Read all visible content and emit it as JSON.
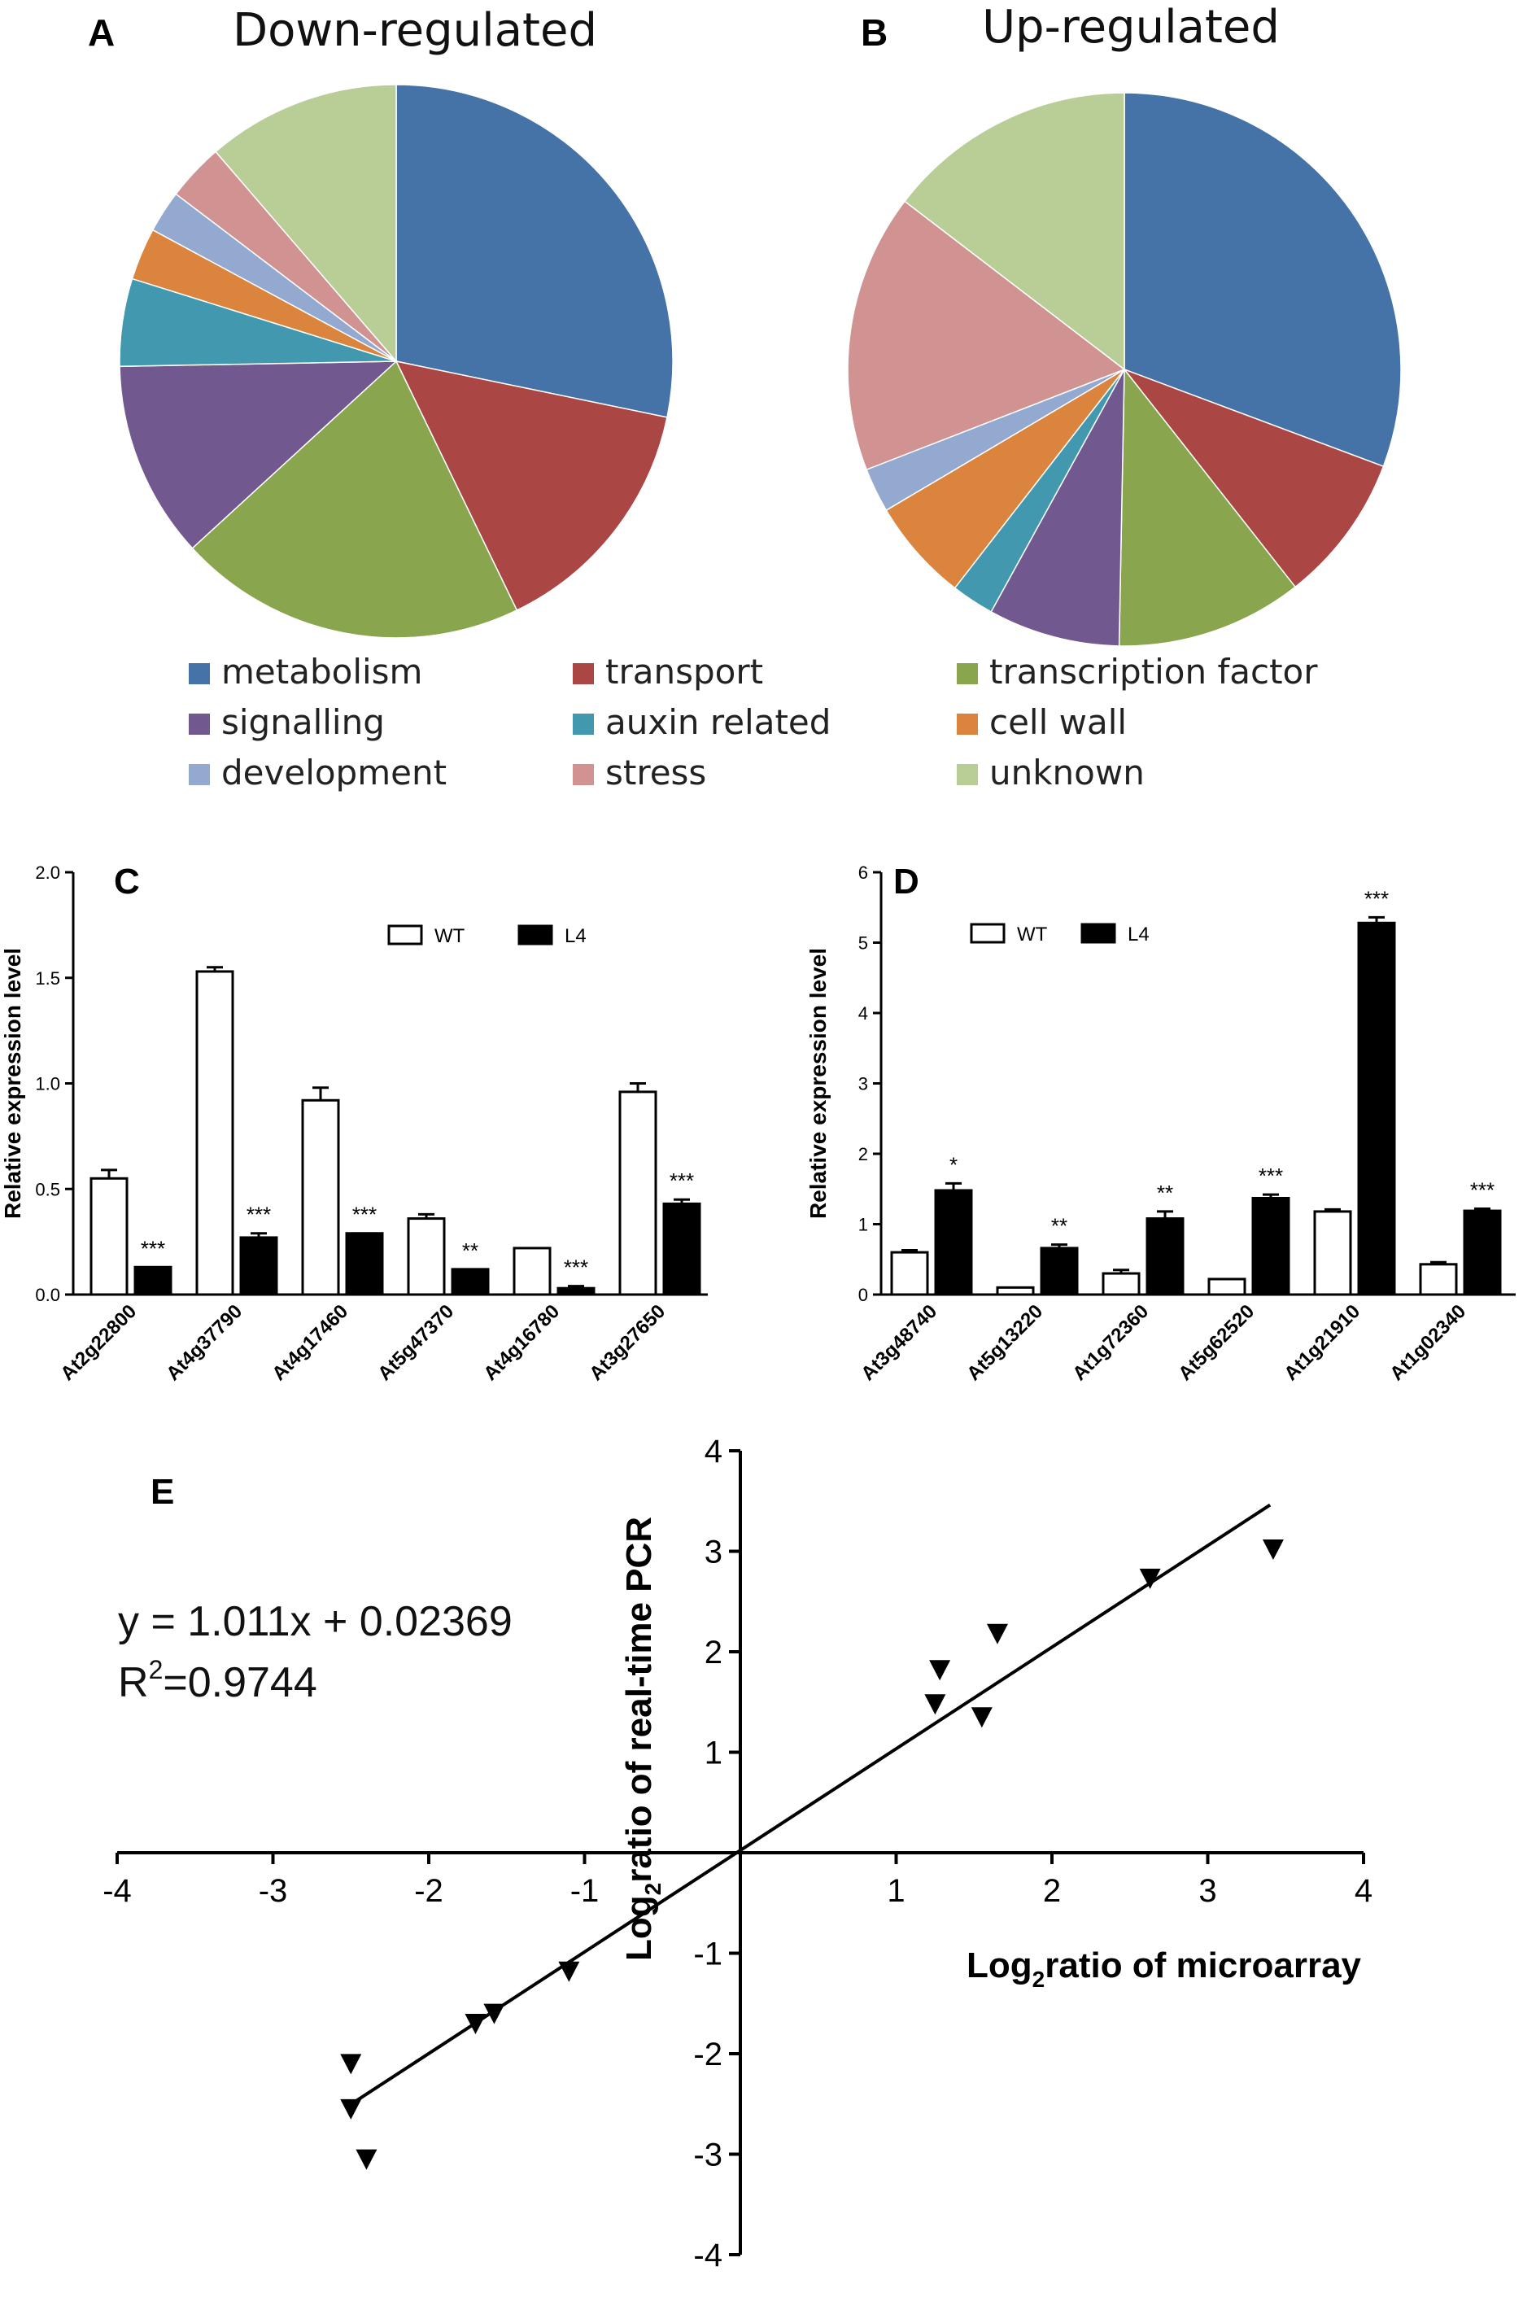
{
  "chart_data": [
    {
      "panel": "A",
      "type": "pie",
      "title": "Down-regulated",
      "categories": [
        "metabolism",
        "transport",
        "transcription factor",
        "signalling",
        "auxin related",
        "cell wall",
        "development",
        "stress",
        "unknown"
      ],
      "values": [
        28.7,
        14.8,
        20.7,
        11.7,
        5.2,
        3.1,
        2.5,
        3.4,
        11.5
      ],
      "colors": [
        "#4572a7",
        "#aa4643",
        "#89a54e",
        "#71588f",
        "#4198af",
        "#db843d",
        "#93a9cf",
        "#d19392",
        "#b9cd96"
      ]
    },
    {
      "panel": "B",
      "type": "pie",
      "title": "Up-regulated",
      "categories": [
        "metabolism",
        "transport",
        "transcription factor",
        "signalling",
        "auxin related",
        "cell wall",
        "development",
        "stress",
        "unknown"
      ],
      "values": [
        30.7,
        8.7,
        10.9,
        7.7,
        2.5,
        6.0,
        2.6,
        16.3,
        14.6
      ],
      "colors": [
        "#4572a7",
        "#aa4643",
        "#89a54e",
        "#71588f",
        "#4198af",
        "#db843d",
        "#93a9cf",
        "#d19392",
        "#b9cd96"
      ]
    },
    {
      "panel": "C",
      "type": "bar",
      "ylabel": "Relative expression level",
      "ylim": [
        0,
        2.0
      ],
      "yticks": [
        "0.0",
        "0.5",
        "1.0",
        "1.5",
        "2.0"
      ],
      "categories": [
        "At2g22800",
        "At4g37790",
        "At4g17460",
        "At5g47370",
        "At4g16780",
        "At3g27650"
      ],
      "series": [
        {
          "name": "WT",
          "values": [
            0.55,
            1.53,
            0.92,
            0.36,
            0.22,
            0.96
          ],
          "errors": [
            0.04,
            0.02,
            0.06,
            0.02,
            0.0,
            0.04
          ]
        },
        {
          "name": "L4",
          "values": [
            0.13,
            0.27,
            0.29,
            0.12,
            0.03,
            0.43
          ],
          "errors": [
            0.0,
            0.02,
            0.0,
            0.0,
            0.01,
            0.02
          ]
        }
      ],
      "significance": [
        "***",
        "***",
        "***",
        "**",
        "***",
        "***"
      ]
    },
    {
      "panel": "D",
      "type": "bar",
      "ylabel": "Relative expression level",
      "ylim": [
        0,
        6
      ],
      "yticks": [
        "0",
        "1",
        "2",
        "3",
        "4",
        "5",
        "6"
      ],
      "categories": [
        "At3g48740",
        "At5g13220",
        "At1g72360",
        "At5g62520",
        "At1g21910",
        "At1g02340"
      ],
      "series": [
        {
          "name": "WT",
          "values": [
            0.6,
            0.1,
            0.3,
            0.22,
            1.18,
            0.43
          ],
          "errors": [
            0.03,
            0.0,
            0.05,
            0.0,
            0.03,
            0.03
          ]
        },
        {
          "name": "L4",
          "values": [
            1.48,
            0.66,
            1.08,
            1.37,
            5.28,
            1.19
          ],
          "errors": [
            0.1,
            0.05,
            0.1,
            0.05,
            0.08,
            0.03
          ]
        }
      ],
      "significance": [
        "*",
        "**",
        "**",
        "***",
        "***",
        "***"
      ]
    },
    {
      "panel": "E",
      "type": "scatter",
      "xlabel_main": "Log",
      "xlabel_sub": "2",
      "xlabel_rest": "ratio of microarray",
      "ylabel_main": "Log",
      "ylabel_sub": "2",
      "ylabel_rest": "ratio of real-time PCR",
      "xlim": [
        -4,
        4
      ],
      "ylim": [
        -4,
        4
      ],
      "xticks": [
        "-4",
        "-3",
        "-2",
        "-1",
        "1",
        "2",
        "3",
        "4"
      ],
      "yticks": [
        "-4",
        "-3",
        "-2",
        "-1",
        "1",
        "2",
        "3",
        "4"
      ],
      "points": [
        [
          -2.5,
          -2.1
        ],
        [
          -2.5,
          -2.55
        ],
        [
          -2.4,
          -3.05
        ],
        [
          -1.7,
          -1.7
        ],
        [
          -1.58,
          -1.6
        ],
        [
          -1.1,
          -1.18
        ],
        [
          1.28,
          1.82
        ],
        [
          1.25,
          1.48
        ],
        [
          1.55,
          1.35
        ],
        [
          1.65,
          2.18
        ],
        [
          2.63,
          2.73
        ],
        [
          3.42,
          3.02
        ]
      ],
      "regression": {
        "slope": 1.011,
        "intercept": 0.02369,
        "x_range": [
          -2.5,
          3.4
        ]
      },
      "equation": "y = 1.011x + 0.02369",
      "r2_main": "R",
      "r2_sup": "2",
      "r2_rest": "=0.9744"
    }
  ],
  "panel_labels": {
    "a": "A",
    "b": "B",
    "c": "C",
    "d": "D",
    "e": "E"
  },
  "titles": {
    "a": "Down-regulated",
    "b": "Up-regulated"
  },
  "legend": [
    {
      "label": "metabolism",
      "color": "#4572a7"
    },
    {
      "label": "transport",
      "color": "#aa4643"
    },
    {
      "label": "transcription factor",
      "color": "#89a54e"
    },
    {
      "label": "signalling",
      "color": "#71588f"
    },
    {
      "label": "auxin related",
      "color": "#4198af"
    },
    {
      "label": "cell wall",
      "color": "#db843d"
    },
    {
      "label": "development",
      "color": "#93a9cf"
    },
    {
      "label": "stress",
      "color": "#d19392"
    },
    {
      "label": "unknown",
      "color": "#b9cd96"
    }
  ]
}
